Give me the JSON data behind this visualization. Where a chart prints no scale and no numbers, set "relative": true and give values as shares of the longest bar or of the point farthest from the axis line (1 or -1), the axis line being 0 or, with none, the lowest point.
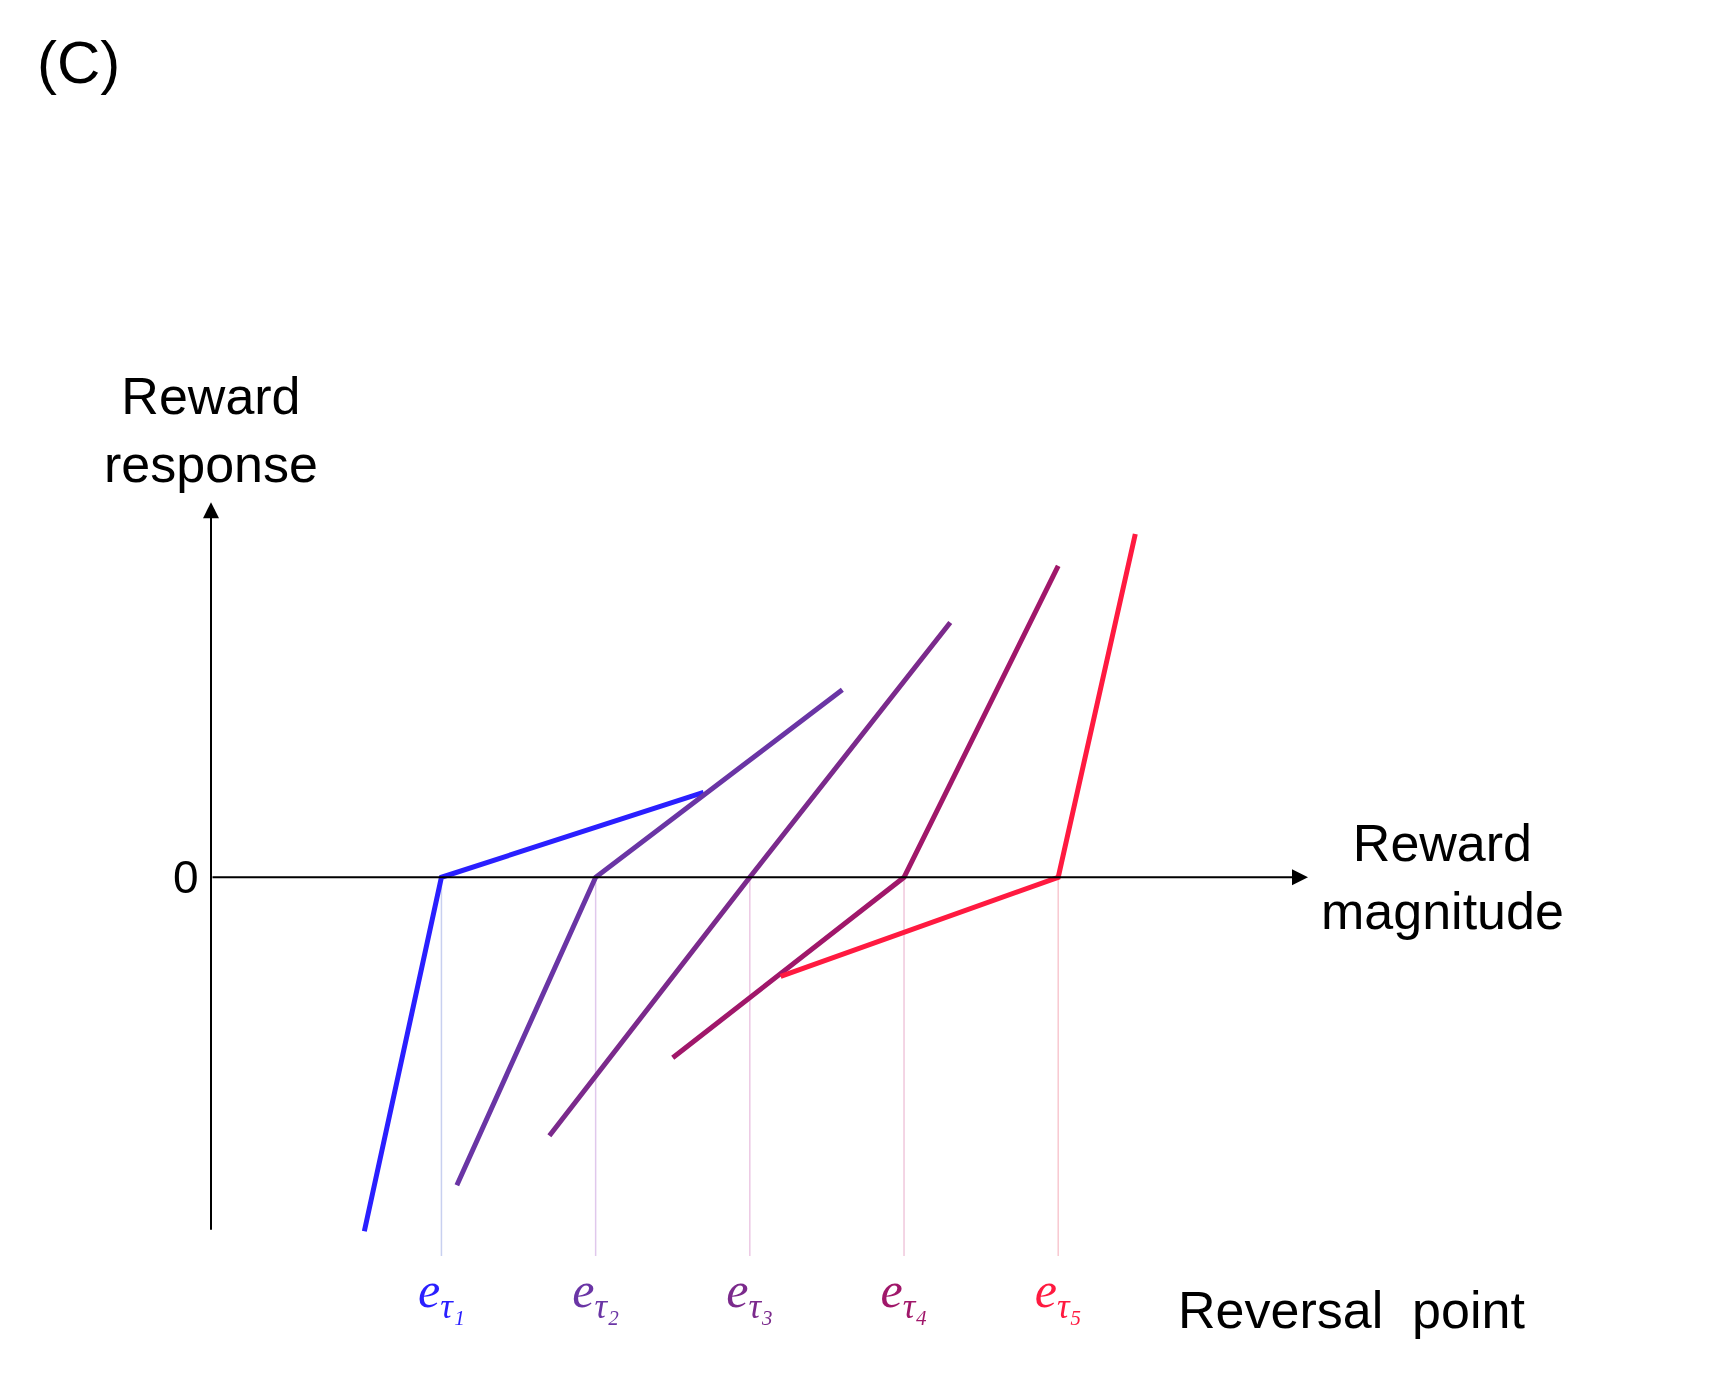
{
  "chart_data": {
    "type": "line",
    "title": "(C)",
    "ylabel": "Reward\nresponse",
    "xlabel": "Reward\nmagnitude",
    "relative": true,
    "annotations": [
      "Reversal  point"
    ],
    "categories": [
      null,
      null,
      null,
      null,
      null,
      "e$_{τ₁}$",
      null,
      null,
      null,
      null,
      null,
      null,
      null,
      null,
      null,
      "e$_{τ₂}$",
      null,
      null,
      null,
      null,
      null,
      null,
      null,
      null,
      null,
      "e$_{τ₃}$",
      null,
      null,
      null,
      null,
      null,
      null,
      null,
      null,
      null,
      "e$_{τ₄}$",
      null,
      null,
      null,
      null,
      null,
      null,
      null,
      null,
      null,
      "e$_{τ₅}$",
      null,
      null,
      null,
      null,
      null
    ],
    "series": [
      {
        "color": "#2a1fff",
        "values": [
          -1,
          null,
          null,
          null,
          null,
          0,
          null,
          null,
          null,
          null,
          null,
          null,
          null,
          null,
          null,
          null,
          null,
          null,
          null,
          null,
          null,
          null,
          0.24,
          null,
          null,
          null,
          null,
          null,
          null,
          null,
          null,
          null,
          null,
          null,
          null,
          null,
          null,
          null,
          null,
          null,
          null,
          null,
          null,
          null,
          null,
          null,
          null,
          null,
          null,
          null,
          null
        ]
      },
      {
        "color": "#6a35a5",
        "values": [
          null,
          null,
          null,
          null,
          null,
          null,
          -0.87,
          null,
          null,
          null,
          null,
          null,
          null,
          null,
          null,
          0,
          null,
          null,
          null,
          null,
          null,
          null,
          null,
          null,
          null,
          null,
          null,
          null,
          null,
          null,
          null,
          0.53,
          null,
          null,
          null,
          null,
          null,
          null,
          null,
          null,
          null,
          null,
          null,
          null,
          null,
          null,
          null,
          null,
          null,
          null,
          null
        ]
      },
      {
        "color": "#7b2a8c",
        "values": [
          null,
          null,
          null,
          null,
          null,
          null,
          null,
          null,
          null,
          null,
          null,
          null,
          -0.73,
          null,
          null,
          null,
          null,
          null,
          null,
          null,
          null,
          null,
          null,
          null,
          null,
          0,
          null,
          null,
          null,
          null,
          null,
          null,
          null,
          null,
          null,
          null,
          null,
          null,
          0.72,
          null,
          null,
          null,
          null,
          null,
          null,
          null,
          null,
          null,
          null,
          null,
          null
        ]
      },
      {
        "color": "#a0176a",
        "values": [
          null,
          null,
          null,
          null,
          null,
          null,
          null,
          null,
          null,
          null,
          null,
          null,
          null,
          null,
          null,
          null,
          null,
          null,
          null,
          null,
          -0.51,
          null,
          null,
          null,
          null,
          null,
          null,
          null,
          null,
          null,
          null,
          null,
          null,
          null,
          null,
          0,
          null,
          null,
          null,
          null,
          null,
          null,
          null,
          null,
          null,
          0.88,
          null,
          null,
          null,
          null,
          null
        ]
      },
      {
        "color": "#ff1a40",
        "values": [
          null,
          null,
          null,
          null,
          null,
          null,
          null,
          null,
          null,
          null,
          null,
          null,
          null,
          null,
          null,
          null,
          null,
          null,
          null,
          null,
          null,
          null,
          null,
          null,
          null,
          null,
          null,
          -0.28,
          null,
          null,
          null,
          null,
          null,
          null,
          null,
          null,
          null,
          null,
          null,
          null,
          null,
          null,
          null,
          null,
          null,
          0,
          null,
          null,
          null,
          null,
          0.97
        ]
      }
    ],
    "ref_lines": [
      {
        "axis": "y",
        "value": 0,
        "label": "0",
        "color": "#000000"
      },
      {
        "axis": "x",
        "value": "e$_{τ₁}$",
        "color": "#c8d0f0"
      },
      {
        "axis": "x",
        "value": "e$_{τ₂}$",
        "color": "#e0c8ec"
      },
      {
        "axis": "x",
        "value": "e$_{τ₃}$",
        "color": "#ecc8e4"
      },
      {
        "axis": "x",
        "value": "e$_{τ₄}$",
        "color": "#f0c8dc"
      },
      {
        "axis": "x",
        "value": "e$_{τ₅}$",
        "color": "#f8c8d0"
      }
    ],
    "marker": "none",
    "line_style": "solid"
  }
}
